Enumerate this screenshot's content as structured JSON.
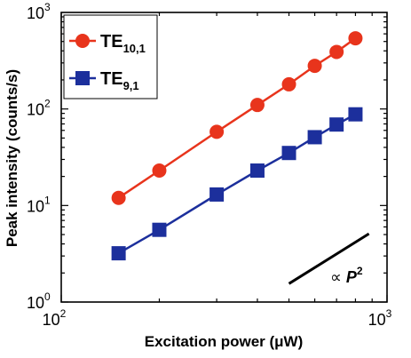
{
  "chart_data": {
    "type": "scatter",
    "xlabel": "Excitation power (μW)",
    "ylabel": "Peak intensity (counts/s)",
    "x_scale": "log",
    "y_scale": "log",
    "xlim": [
      100,
      1000
    ],
    "ylim": [
      1,
      1000
    ],
    "x_ticks": [
      {
        "base": "10",
        "exp": "2"
      },
      {
        "base": "10",
        "exp": "3"
      }
    ],
    "y_ticks": [
      {
        "base": "10",
        "exp": "0"
      },
      {
        "base": "10",
        "exp": "1"
      },
      {
        "base": "10",
        "exp": "2"
      },
      {
        "base": "10",
        "exp": "3"
      }
    ],
    "grid": false,
    "legend_position": "top-left",
    "series": [
      {
        "name": "TE",
        "name_sub": "10,1",
        "color": "#e8341c",
        "marker": "circle",
        "x": [
          150,
          200,
          300,
          400,
          500,
          600,
          700,
          800
        ],
        "y": [
          12,
          23,
          58,
          110,
          180,
          280,
          390,
          540
        ]
      },
      {
        "name": "TE",
        "name_sub": "9,1",
        "color": "#1c2f9c",
        "marker": "square",
        "x": [
          150,
          200,
          300,
          400,
          500,
          600,
          700,
          800
        ],
        "y": [
          3.2,
          5.6,
          13,
          23,
          35,
          51,
          69,
          88
        ]
      }
    ],
    "annotation": {
      "prefix": "∝ ",
      "text": "P",
      "sup": "2",
      "line_x": [
        500,
        880
      ],
      "line_y": [
        1.55,
        5.1
      ],
      "color": "#000000"
    }
  }
}
